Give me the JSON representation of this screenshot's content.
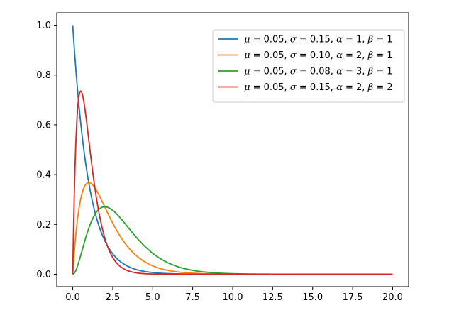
{
  "chart_data": {
    "type": "line",
    "title": "",
    "xlabel": "",
    "ylabel": "",
    "xlim": [
      -1,
      21
    ],
    "ylim": [
      -0.05,
      1.05
    ],
    "x_ticks": [
      0.0,
      2.5,
      5.0,
      7.5,
      10.0,
      12.5,
      15.0,
      17.5,
      20.0
    ],
    "x_tick_labels": [
      "0.0",
      "2.5",
      "5.0",
      "7.5",
      "10.0",
      "12.5",
      "15.0",
      "17.5",
      "20.0"
    ],
    "y_ticks": [
      0.0,
      0.2,
      0.4,
      0.6,
      0.8,
      1.0
    ],
    "y_tick_labels": [
      "0.0",
      "0.2",
      "0.4",
      "0.6",
      "0.8",
      "1.0"
    ],
    "grid": false,
    "legend_position": "top-right",
    "x_range": [
      0,
      20
    ],
    "series": [
      {
        "label_parts": [
          "μ",
          " = 0.05,  ",
          "σ",
          " = 0.15,  ",
          "α",
          " = 1,  ",
          "β",
          " = 1"
        ],
        "mu": 0.05,
        "sigma": 0.15,
        "alpha": 1,
        "beta": 1,
        "color": "#1f77b4",
        "points": [
          [
            0,
            1.0
          ],
          [
            0.5,
            0.607
          ],
          [
            1,
            0.368
          ],
          [
            1.5,
            0.223
          ],
          [
            2,
            0.135
          ],
          [
            3,
            0.05
          ],
          [
            4,
            0.018
          ],
          [
            5,
            0.007
          ],
          [
            7.5,
            0.001
          ],
          [
            10,
            0.0
          ],
          [
            20,
            0.0
          ]
        ]
      },
      {
        "label_parts": [
          "μ",
          " = 0.05,  ",
          "σ",
          " = 0.10,  ",
          "α",
          " = 2,  ",
          "β",
          " = 1"
        ],
        "mu": 0.05,
        "sigma": 0.1,
        "alpha": 2,
        "beta": 1,
        "color": "#ff7f0e",
        "points": [
          [
            0,
            0.0
          ],
          [
            0.5,
            0.303
          ],
          [
            1,
            0.368
          ],
          [
            1.5,
            0.335
          ],
          [
            2,
            0.271
          ],
          [
            3,
            0.149
          ],
          [
            4,
            0.073
          ],
          [
            5,
            0.034
          ],
          [
            7.5,
            0.004
          ],
          [
            10,
            0.0005
          ],
          [
            20,
            0.0
          ]
        ]
      },
      {
        "label_parts": [
          "μ",
          " = 0.05,  ",
          "σ",
          " = 0.08,  ",
          "α",
          " = 3,  ",
          "β",
          " = 1"
        ],
        "mu": 0.05,
        "sigma": 0.08,
        "alpha": 3,
        "beta": 1,
        "color": "#2ca02c",
        "points": [
          [
            0,
            0.0
          ],
          [
            0.5,
            0.076
          ],
          [
            1,
            0.184
          ],
          [
            1.5,
            0.251
          ],
          [
            2,
            0.271
          ],
          [
            3,
            0.224
          ],
          [
            4,
            0.147
          ],
          [
            5,
            0.084
          ],
          [
            7.5,
            0.016
          ],
          [
            10,
            0.002
          ],
          [
            20,
            0.0
          ]
        ]
      },
      {
        "label_parts": [
          "μ",
          " = 0.05,  ",
          "σ",
          " = 0.15,  ",
          "α",
          " = 2,  ",
          "β",
          " = 2"
        ],
        "mu": 0.05,
        "sigma": 0.15,
        "alpha": 2,
        "beta": 2,
        "color": "#d62728",
        "points": [
          [
            0,
            0.0
          ],
          [
            0.25,
            0.606
          ],
          [
            0.5,
            0.736
          ],
          [
            1,
            0.541
          ],
          [
            1.5,
            0.335
          ],
          [
            2,
            0.183
          ],
          [
            3,
            0.045
          ],
          [
            4,
            0.01
          ],
          [
            5,
            0.002
          ],
          [
            7.5,
            0.0
          ],
          [
            20,
            0.0
          ]
        ]
      }
    ]
  }
}
